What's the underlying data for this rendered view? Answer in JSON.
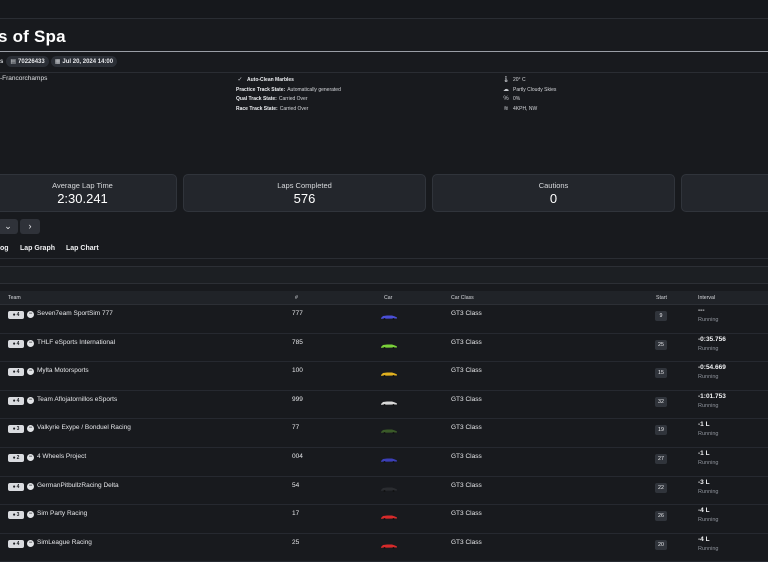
{
  "event": {
    "title_partial": "s of Spa",
    "meta_cut": "s",
    "session_id": "70226433",
    "date": "Jul 20, 2024 14:00",
    "track_partial": "-Francorchamps"
  },
  "conditions": {
    "auto_clean_marbles": "Auto-Clean Marbles",
    "practice_label": "Practice Track State:",
    "practice_value": "Automatically generated",
    "qual_label": "Qual Track State:",
    "qual_value": "Carried Over",
    "race_label": "Race Track State:",
    "race_value": "Carried Over"
  },
  "weather": {
    "temperature": "20° C",
    "sky": "Partly Cloudy Skies",
    "precipitation": "0%",
    "wind": "4KPH, NW"
  },
  "stats": [
    {
      "label": "Average Lap Time",
      "value": "2:30.241"
    },
    {
      "label": "Laps Completed",
      "value": "576"
    },
    {
      "label": "Cautions",
      "value": "0"
    }
  ],
  "tabs": [
    "og",
    "Lap Graph",
    "Lap Chart"
  ],
  "table": {
    "headers": {
      "team": "Team",
      "num": "#",
      "car": "Car",
      "car_class": "Car Class",
      "start": "Start",
      "interval": "Interval"
    },
    "rows": [
      {
        "drivers": "4",
        "team": "Seven7eam SportSim 777",
        "num": "777",
        "car_class": "GT3 Class",
        "start": "9",
        "interval": "---",
        "status": "Running",
        "car_color": "#4a4fd6"
      },
      {
        "drivers": "4",
        "team": "THLF eSports International",
        "num": "785",
        "car_class": "GT3 Class",
        "start": "25",
        "interval": "-0:35.756",
        "status": "Running",
        "car_color": "#7ad13a"
      },
      {
        "drivers": "4",
        "team": "Mylta Motorsports",
        "num": "100",
        "car_class": "GT3 Class",
        "start": "15",
        "interval": "-0:54.669",
        "status": "Running",
        "car_color": "#e0b020"
      },
      {
        "drivers": "4",
        "team": "Team Aflojatornillos eSports",
        "num": "999",
        "car_class": "GT3 Class",
        "start": "32",
        "interval": "-1:01.753",
        "status": "Running",
        "car_color": "#d8d8d8"
      },
      {
        "drivers": "3",
        "team": "Valkyrie Exype / Bonduel Racing",
        "num": "77",
        "car_class": "GT3 Class",
        "start": "19",
        "interval": "-1 L",
        "status": "Running",
        "car_color": "#3a5a28"
      },
      {
        "drivers": "2",
        "team": "4 Wheels Project",
        "num": "004",
        "car_class": "GT3 Class",
        "start": "27",
        "interval": "-1 L",
        "status": "Running",
        "car_color": "#3b3fb8"
      },
      {
        "drivers": "4",
        "team": "GermanPitbullzRacing Delta",
        "num": "54",
        "car_class": "GT3 Class",
        "start": "22",
        "interval": "-3 L",
        "status": "Running",
        "car_color": "#2a2c30"
      },
      {
        "drivers": "3",
        "team": "Sim Party Racing",
        "num": "17",
        "car_class": "GT3 Class",
        "start": "26",
        "interval": "-4 L",
        "status": "Running",
        "car_color": "#d62a2a"
      },
      {
        "drivers": "4",
        "team": "SimLeague Racing",
        "num": "25",
        "car_class": "GT3 Class",
        "start": "20",
        "interval": "-4 L",
        "status": "Running",
        "car_color": "#d62a2a"
      }
    ]
  }
}
